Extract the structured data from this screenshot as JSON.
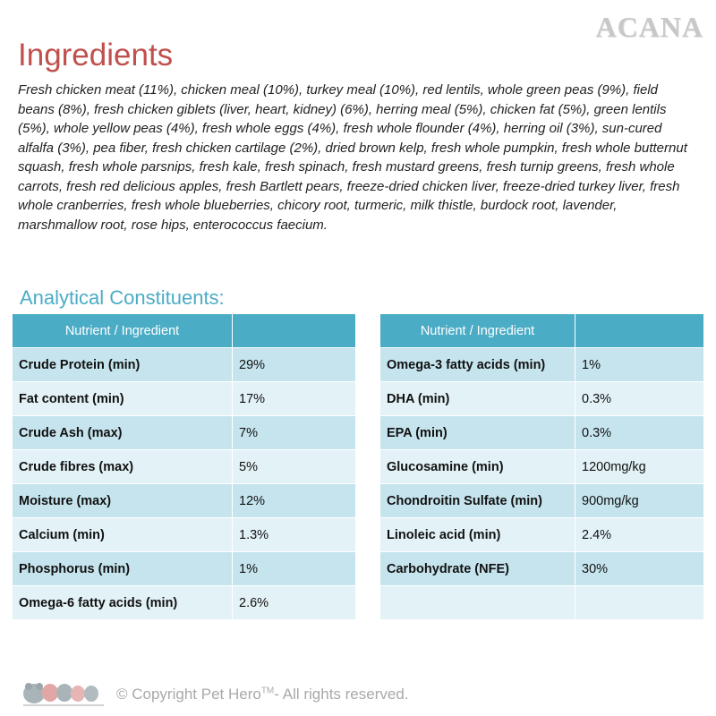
{
  "brand": "ACANA",
  "title": "Ingredients",
  "ingredients_text": "Fresh chicken meat (11%), chicken meal (10%), turkey meal (10%), red lentils, whole green peas (9%), field beans (8%), fresh chicken giblets (liver, heart, kidney) (6%), herring meal (5%), chicken fat (5%), green lentils (5%), whole yellow peas (4%), fresh whole eggs (4%), fresh whole flounder (4%), herring oil (3%), sun-cured alfalfa (3%), pea fiber, fresh chicken cartilage (2%), dried brown kelp, fresh whole pumpkin, fresh whole butternut squash, fresh whole parsnips, fresh kale, fresh spinach, fresh mustard greens, fresh turnip greens, fresh whole carrots, fresh red delicious apples, fresh Bartlett pears, freeze-dried chicken liver, freeze-dried turkey liver, fresh whole cranberries, fresh whole blueberries, chicory root, turmeric, milk thistle, burdock root, lavender, marshmallow root, rose hips, enterococcus faecium.",
  "analytical_title": "Analytical Constituents:",
  "table_left": {
    "header": [
      "Nutrient / Ingredient",
      ""
    ],
    "rows": [
      [
        "Crude Protein (min)",
        "29%"
      ],
      [
        "Fat content (min)",
        "17%"
      ],
      [
        "Crude Ash (max)",
        "7%"
      ],
      [
        "Crude fibres (max)",
        "5%"
      ],
      [
        "Moisture (max)",
        "12%"
      ],
      [
        "Calcium (min)",
        "1.3%"
      ],
      [
        "Phosphorus (min)",
        "1%"
      ],
      [
        "Omega-6 fatty acids (min)",
        "2.6%"
      ]
    ]
  },
  "table_right": {
    "header": [
      "Nutrient / Ingredient",
      ""
    ],
    "rows": [
      [
        "Omega-3 fatty acids (min)",
        "1%"
      ],
      [
        "DHA (min)",
        "0.3%"
      ],
      [
        "EPA (min)",
        "0.3%"
      ],
      [
        "Glucosamine (min)",
        "1200mg/kg"
      ],
      [
        "Chondroitin Sulfate (min)",
        "900mg/kg"
      ],
      [
        "Linoleic acid (min)",
        "2.4%"
      ],
      [
        "Carbohydrate (NFE)",
        "30%"
      ],
      [
        "",
        ""
      ]
    ]
  },
  "footer": {
    "copyright_prefix": "© Copyright Pet Hero",
    "trademark": "TM",
    "copyright_suffix": "- All rights reserved."
  },
  "colors": {
    "title": "#c0504d",
    "accent": "#4bacc6",
    "row_dark": "#c6e4ee",
    "row_light": "#e3f2f7"
  }
}
